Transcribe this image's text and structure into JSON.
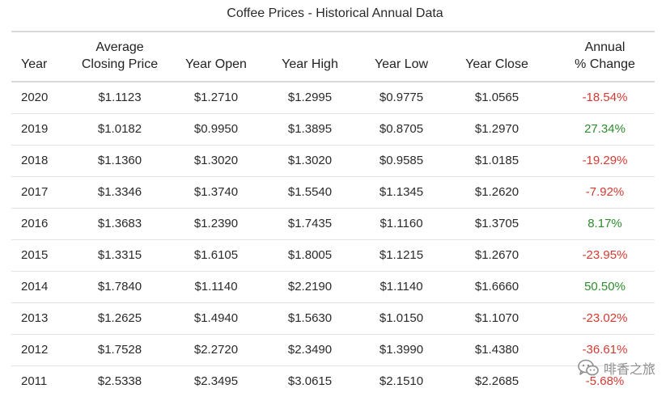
{
  "title": "Coffee Prices - Historical Annual Data",
  "colors": {
    "negative": "#d23b32",
    "positive": "#2e8b2e"
  },
  "table": {
    "headers": {
      "year": "Year",
      "avg_line1": "Average",
      "avg_line2": "Closing Price",
      "open": "Year Open",
      "high": "Year High",
      "low": "Year Low",
      "close": "Year Close",
      "change_line1": "Annual",
      "change_line2": "% Change"
    },
    "rows": [
      {
        "year": "2020",
        "avg": "$1.1123",
        "open": "$1.2710",
        "high": "$1.2995",
        "low": "$0.9775",
        "close": "$1.0565",
        "change": "-18.54%",
        "dir": "neg"
      },
      {
        "year": "2019",
        "avg": "$1.0182",
        "open": "$0.9950",
        "high": "$1.3895",
        "low": "$0.8705",
        "close": "$1.2970",
        "change": "27.34%",
        "dir": "pos"
      },
      {
        "year": "2018",
        "avg": "$1.1360",
        "open": "$1.3020",
        "high": "$1.3020",
        "low": "$0.9585",
        "close": "$1.0185",
        "change": "-19.29%",
        "dir": "neg"
      },
      {
        "year": "2017",
        "avg": "$1.3346",
        "open": "$1.3740",
        "high": "$1.5540",
        "low": "$1.1345",
        "close": "$1.2620",
        "change": "-7.92%",
        "dir": "neg"
      },
      {
        "year": "2016",
        "avg": "$1.3683",
        "open": "$1.2390",
        "high": "$1.7435",
        "low": "$1.1160",
        "close": "$1.3705",
        "change": "8.17%",
        "dir": "pos"
      },
      {
        "year": "2015",
        "avg": "$1.3315",
        "open": "$1.6105",
        "high": "$1.8005",
        "low": "$1.1215",
        "close": "$1.2670",
        "change": "-23.95%",
        "dir": "neg"
      },
      {
        "year": "2014",
        "avg": "$1.7840",
        "open": "$1.1140",
        "high": "$2.2190",
        "low": "$1.1140",
        "close": "$1.6660",
        "change": "50.50%",
        "dir": "pos"
      },
      {
        "year": "2013",
        "avg": "$1.2625",
        "open": "$1.4940",
        "high": "$1.5630",
        "low": "$1.0150",
        "close": "$1.1070",
        "change": "-23.02%",
        "dir": "neg"
      },
      {
        "year": "2012",
        "avg": "$1.7528",
        "open": "$2.2720",
        "high": "$2.3490",
        "low": "$1.3990",
        "close": "$1.4380",
        "change": "-36.61%",
        "dir": "neg"
      },
      {
        "year": "2011",
        "avg": "$2.5338",
        "open": "$2.3495",
        "high": "$3.0615",
        "low": "$2.1510",
        "close": "$2.2685",
        "change": "-5.68%",
        "dir": "neg"
      }
    ]
  },
  "watermark": {
    "icon": "wechat-icon",
    "text": "啡香之旅"
  }
}
